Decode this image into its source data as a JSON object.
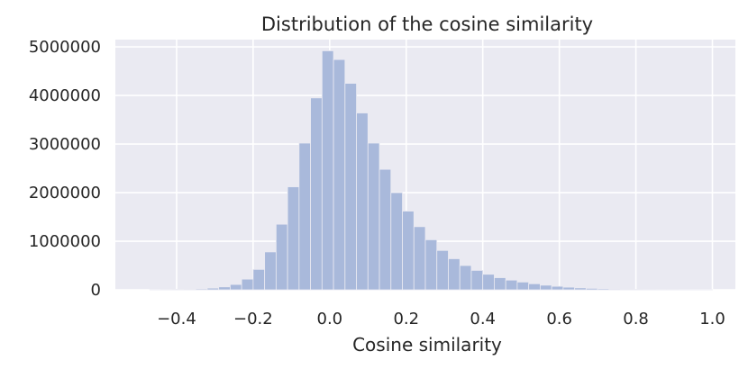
{
  "chart_data": {
    "type": "bar",
    "title": "Distribution of the cosine similarity",
    "xlabel": "Cosine similarity",
    "ylabel": "",
    "xlim": [
      -0.56,
      1.06
    ],
    "ylim": [
      0,
      5150000
    ],
    "x_ticks": [
      -0.4,
      -0.2,
      0.0,
      0.2,
      0.4,
      0.6,
      0.8,
      1.0
    ],
    "x_tick_labels": [
      "−0.4",
      "−0.2",
      "0.0",
      "0.2",
      "0.4",
      "0.6",
      "0.8",
      "1.0"
    ],
    "y_ticks": [
      0,
      1000000,
      2000000,
      3000000,
      4000000,
      5000000
    ],
    "y_tick_labels": [
      "0",
      "1000000",
      "2000000",
      "3000000",
      "4000000",
      "5000000"
    ],
    "grid": true,
    "bin_width": 0.03,
    "bin_starts": [
      -0.47,
      -0.44,
      -0.41,
      -0.38,
      -0.35,
      -0.32,
      -0.29,
      -0.26,
      -0.23,
      -0.2,
      -0.17,
      -0.14,
      -0.11,
      -0.08,
      -0.05,
      -0.02,
      0.01,
      0.04,
      0.07,
      0.1,
      0.13,
      0.16,
      0.19,
      0.22,
      0.25,
      0.28,
      0.31,
      0.34,
      0.37,
      0.4,
      0.43,
      0.46,
      0.49,
      0.52,
      0.55,
      0.58,
      0.61,
      0.64,
      0.67,
      0.7,
      0.73,
      0.76,
      0.79,
      0.82,
      0.85,
      0.88,
      0.91,
      0.94,
      0.97
    ],
    "values": [
      2000,
      4000,
      8000,
      12000,
      20000,
      35000,
      60000,
      110000,
      220000,
      420000,
      780000,
      1350000,
      2120000,
      3020000,
      3950000,
      4920000,
      4740000,
      4250000,
      3640000,
      3020000,
      2480000,
      2000000,
      1620000,
      1300000,
      1030000,
      810000,
      640000,
      500000,
      400000,
      320000,
      250000,
      200000,
      160000,
      125000,
      95000,
      72000,
      54000,
      40000,
      30000,
      22000,
      16000,
      12000,
      9000,
      7000,
      5000,
      4000,
      3000,
      2000,
      1500
    ],
    "colors": {
      "bar": "#a9b9db",
      "bar_edge": "#eaeaf2",
      "plot_background": "#eaeaf2",
      "grid": "#ffffff"
    }
  }
}
